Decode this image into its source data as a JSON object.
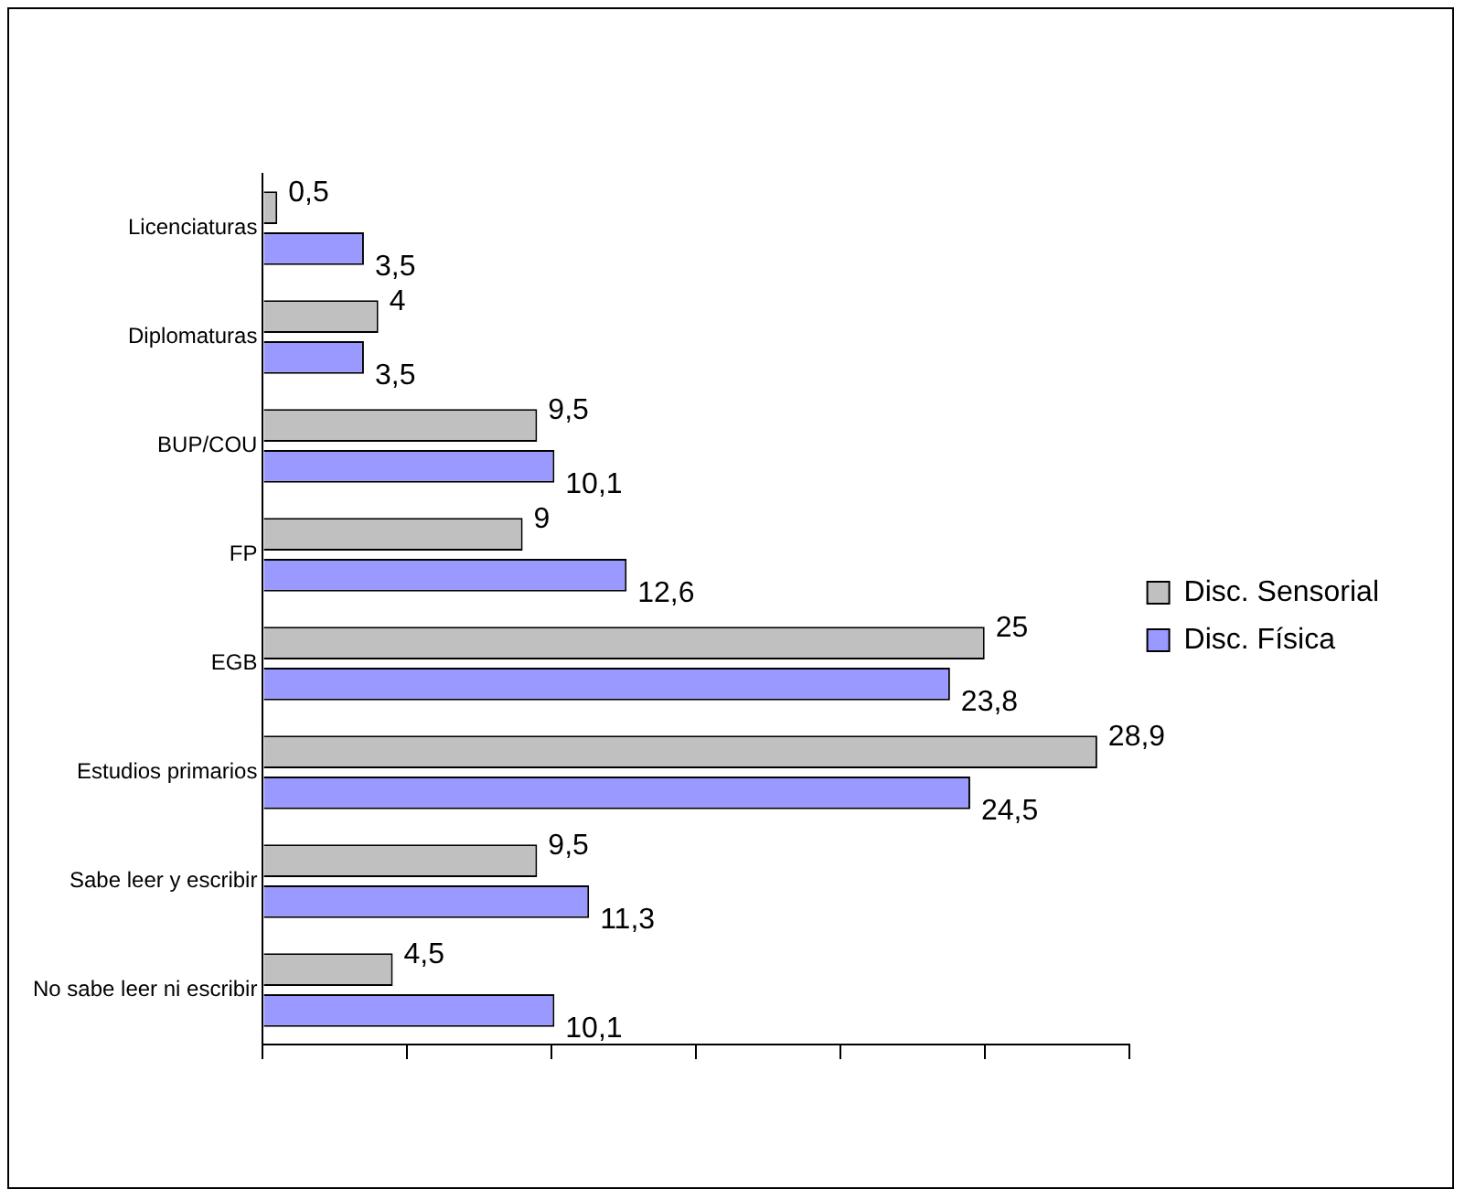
{
  "chart_data": {
    "type": "bar",
    "orientation": "horizontal",
    "categories": [
      "Licenciaturas",
      "Diplomaturas",
      "BUP/COU",
      "FP",
      "EGB",
      "Estudios primarios",
      "Sabe leer y escribir",
      "No sabe leer ni escribir"
    ],
    "series": [
      {
        "name": "Disc. Sensorial",
        "color": "#c0c0c0",
        "values": [
          0.5,
          4,
          9.5,
          9,
          25,
          28.9,
          9.5,
          4.5
        ],
        "value_labels": [
          "0,5",
          "4",
          "9,5",
          "9",
          "25",
          "28,9",
          "9,5",
          "4,5"
        ]
      },
      {
        "name": "Disc. Física",
        "color": "#9999ff",
        "values": [
          3.5,
          3.5,
          10.1,
          12.6,
          23.8,
          24.5,
          11.3,
          10.1
        ],
        "value_labels": [
          "3,5",
          "3,5",
          "10,1",
          "12,6",
          "23,8",
          "24,5",
          "11,3",
          "10,1"
        ]
      }
    ],
    "xlim": [
      0,
      30
    ],
    "xticks": [
      {
        "value": 0,
        "label": null
      },
      {
        "value": 5,
        "label": null
      },
      {
        "value": 10,
        "label": null
      },
      {
        "value": 15,
        "label": null
      },
      {
        "value": 20,
        "label": null
      },
      {
        "value": 25,
        "label": null
      },
      {
        "value": 30,
        "label": null
      }
    ],
    "tick_labels": "y",
    "grid": false,
    "legend": "right"
  }
}
